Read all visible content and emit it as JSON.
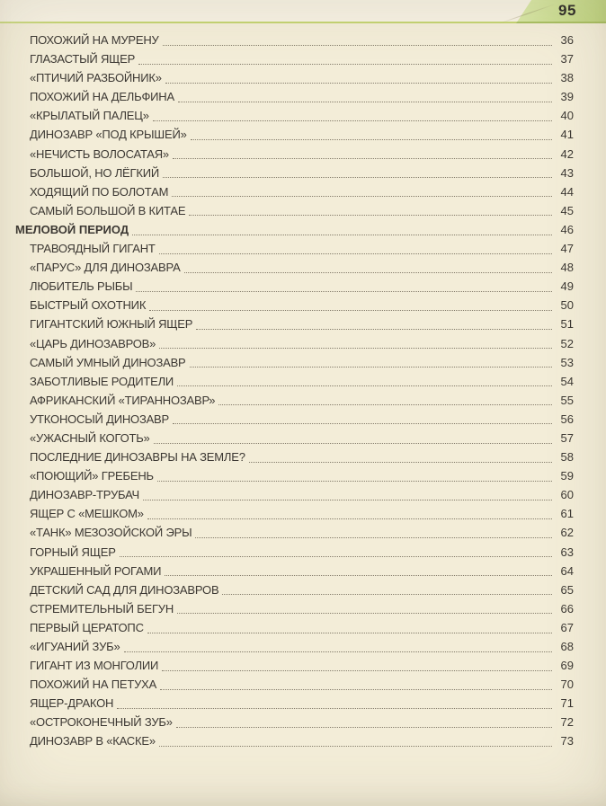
{
  "page": {
    "number": "95"
  },
  "colors": {
    "background": "#f3edd8",
    "rule_green": "#c4d472",
    "tab_green_light": "#dce9ab",
    "tab_green_dark": "#bfd37f",
    "text": "#3c3833",
    "leader_dots": "#847c6b"
  },
  "toc": {
    "entries": [
      {
        "title": "ПОХОЖИЙ НА МУРЕНУ",
        "page": "36",
        "section": false
      },
      {
        "title": "ГЛАЗАСТЫЙ ЯЩЕР",
        "page": "37",
        "section": false
      },
      {
        "title": "«ПТИЧИЙ РАЗБОЙНИК»",
        "page": "38",
        "section": false
      },
      {
        "title": "ПОХОЖИЙ НА ДЕЛЬФИНА",
        "page": "39",
        "section": false
      },
      {
        "title": "«КРЫЛАТЫЙ ПАЛЕЦ»",
        "page": "40",
        "section": false
      },
      {
        "title": "ДИНОЗАВР «ПОД КРЫШЕЙ»",
        "page": "41",
        "section": false
      },
      {
        "title": "«НЕЧИСТЬ ВОЛОСАТАЯ»",
        "page": "42",
        "section": false
      },
      {
        "title": "БОЛЬШОЙ, НО ЛЁГКИЙ",
        "page": "43",
        "section": false
      },
      {
        "title": "ХОДЯЩИЙ ПО БОЛОТАМ",
        "page": "44",
        "section": false
      },
      {
        "title": "САМЫЙ БОЛЬШОЙ В КИТАЕ",
        "page": "45",
        "section": false
      },
      {
        "title": "МЕЛОВОЙ ПЕРИОД",
        "page": "46",
        "section": true
      },
      {
        "title": "ТРАВОЯДНЫЙ ГИГАНТ",
        "page": "47",
        "section": false
      },
      {
        "title": "«ПАРУС» ДЛЯ ДИНОЗАВРА",
        "page": "48",
        "section": false
      },
      {
        "title": "ЛЮБИТЕЛЬ РЫБЫ",
        "page": "49",
        "section": false
      },
      {
        "title": "БЫСТРЫЙ ОХОТНИК",
        "page": "50",
        "section": false
      },
      {
        "title": "ГИГАНТСКИЙ ЮЖНЫЙ ЯЩЕР",
        "page": "51",
        "section": false
      },
      {
        "title": "«ЦАРЬ ДИНОЗАВРОВ»",
        "page": "52",
        "section": false
      },
      {
        "title": "САМЫЙ УМНЫЙ ДИНОЗАВР",
        "page": "53",
        "section": false
      },
      {
        "title": "ЗАБОТЛИВЫЕ РОДИТЕЛИ",
        "page": "54",
        "section": false
      },
      {
        "title": "АФРИКАНСКИЙ «ТИРАННОЗАВР»",
        "page": "55",
        "section": false
      },
      {
        "title": "УТКОНОСЫЙ ДИНОЗАВР",
        "page": "56",
        "section": false
      },
      {
        "title": "«УЖАСНЫЙ КОГОТЬ»",
        "page": "57",
        "section": false
      },
      {
        "title": "ПОСЛЕДНИЕ ДИНОЗАВРЫ НА ЗЕМЛЕ?",
        "page": "58",
        "section": false
      },
      {
        "title": "«ПОЮЩИЙ» ГРЕБЕНЬ",
        "page": "59",
        "section": false
      },
      {
        "title": "ДИНОЗАВР-ТРУБАЧ",
        "page": "60",
        "section": false
      },
      {
        "title": "ЯЩЕР С «МЕШКОМ»",
        "page": "61",
        "section": false
      },
      {
        "title": "«ТАНК» МЕЗОЗОЙСКОЙ ЭРЫ",
        "page": "62",
        "section": false
      },
      {
        "title": "ГОРНЫЙ ЯЩЕР",
        "page": "63",
        "section": false
      },
      {
        "title": "УКРАШЕННЫЙ РОГАМИ",
        "page": "64",
        "section": false
      },
      {
        "title": "ДЕТСКИЙ САД ДЛЯ ДИНОЗАВРОВ",
        "page": "65",
        "section": false
      },
      {
        "title": "СТРЕМИТЕЛЬНЫЙ БЕГУН",
        "page": "66",
        "section": false
      },
      {
        "title": "ПЕРВЫЙ ЦЕРАТОПС",
        "page": "67",
        "section": false
      },
      {
        "title": "«ИГУАНИЙ ЗУБ»",
        "page": "68",
        "section": false
      },
      {
        "title": "ГИГАНТ ИЗ МОНГОЛИИ",
        "page": "69",
        "section": false
      },
      {
        "title": "ПОХОЖИЙ НА ПЕТУХА",
        "page": "70",
        "section": false
      },
      {
        "title": "ЯЩЕР-ДРАКОН",
        "page": "71",
        "section": false
      },
      {
        "title": "«ОСТРОКОНЕЧНЫЙ ЗУБ»",
        "page": "72",
        "section": false
      },
      {
        "title": "ДИНОЗАВР В «КАСКЕ»",
        "page": "73",
        "section": false
      }
    ]
  }
}
